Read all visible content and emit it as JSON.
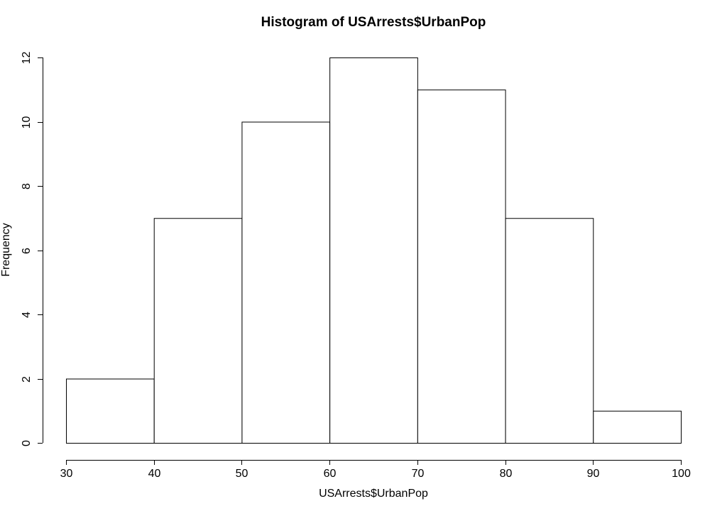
{
  "chart_data": {
    "type": "bar",
    "title": "Histogram of USArrests$UrbanPop",
    "xlabel": "USArrests$UrbanPop",
    "ylabel": "Frequency",
    "bins": [
      {
        "from": 30,
        "to": 40,
        "count": 2
      },
      {
        "from": 40,
        "to": 50,
        "count": 7
      },
      {
        "from": 50,
        "to": 60,
        "count": 10
      },
      {
        "from": 60,
        "to": 70,
        "count": 12
      },
      {
        "from": 70,
        "to": 80,
        "count": 11
      },
      {
        "from": 80,
        "to": 90,
        "count": 7
      },
      {
        "from": 90,
        "to": 100,
        "count": 1
      }
    ],
    "xlim": [
      30,
      100
    ],
    "ylim": [
      0,
      12
    ],
    "xticks": [
      30,
      40,
      50,
      60,
      70,
      80,
      90,
      100
    ],
    "yticks": [
      0,
      2,
      4,
      6,
      8,
      10,
      12
    ],
    "grid": false,
    "bar_fill": "#ffffff",
    "bar_stroke": "#000000"
  }
}
